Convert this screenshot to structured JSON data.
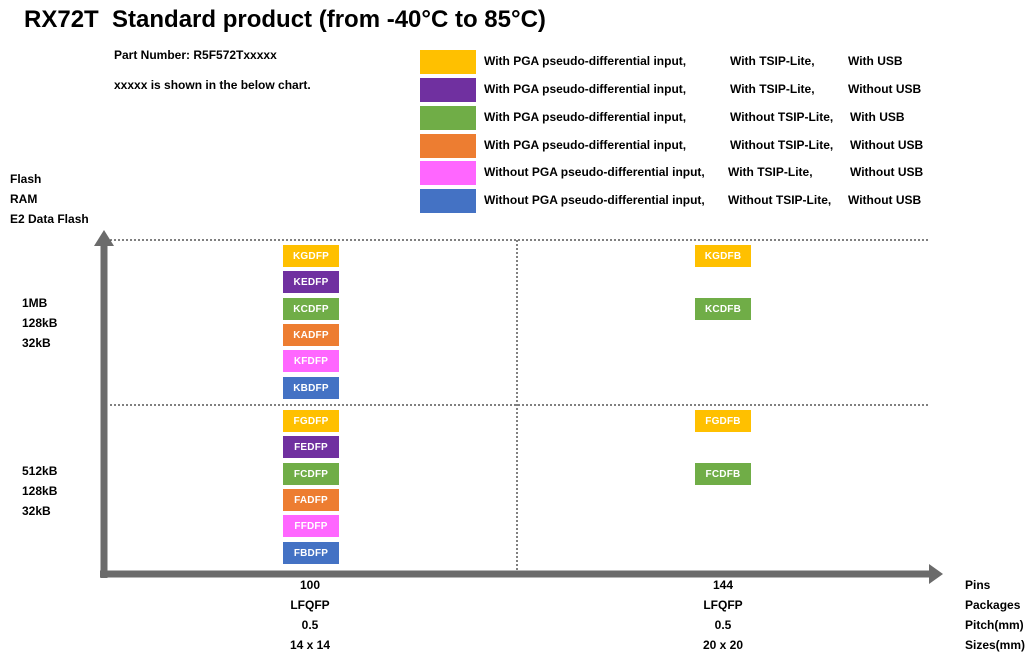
{
  "title": "RX72T  Standard product (from -40°C to 85°C)",
  "part_number": "Part Number: R5F572Txxxxx",
  "part_note": "xxxxx is shown in the below chart.",
  "colors": {
    "pga_tsip_usb": "#FFC000",
    "pga_tsip_nousb": "#7030A0",
    "pga_notsip_usb": "#70AD47",
    "pga_notsip_nousb": "#ED7D31",
    "nopga_tsip_nousb": "#FF66FF",
    "nopga_notsip_nousb": "#4472C4",
    "axis": "#6B6B6B"
  },
  "legend": [
    {
      "pga": "With PGA pseudo-differential input,",
      "tsip": "With TSIP-Lite,",
      "usb": "With USB"
    },
    {
      "pga": "With PGA pseudo-differential input,",
      "tsip": "With TSIP-Lite,",
      "usb": "Without USB"
    },
    {
      "pga": "With PGA pseudo-differential input,",
      "tsip": "Without TSIP-Lite,",
      "usb": "With USB"
    },
    {
      "pga": "With PGA pseudo-differential input,",
      "tsip": "Without TSIP-Lite,",
      "usb": "Without USB"
    },
    {
      "pga": "Without PGA pseudo-differential input,",
      "tsip": "With TSIP-Lite,",
      "usb": "Without USB"
    },
    {
      "pga": "Without PGA pseudo-differential input,",
      "tsip": "Without TSIP-Lite,",
      "usb": "Without USB"
    }
  ],
  "y_axis_labels": [
    "Flash",
    "RAM",
    "E2 Data Flash"
  ],
  "memory_tiers": [
    {
      "flash": "1MB",
      "ram": "128kB",
      "e2": "32kB"
    },
    {
      "flash": "512kB",
      "ram": "128kB",
      "e2": "32kB"
    }
  ],
  "x_axis_categories": [
    "Pins",
    "Packages",
    "Pitch(mm)",
    "Sizes(mm)"
  ],
  "packages": [
    {
      "pins": "100",
      "package": "LFQFP",
      "pitch": "0.5",
      "size": "14 x 14"
    },
    {
      "pins": "144",
      "package": "LFQFP",
      "pitch": "0.5",
      "size": "20 x 20"
    }
  ],
  "cells": {
    "p100_1mb": [
      "KGDFP",
      "KEDFP",
      "KCDFP",
      "KADFP",
      "KFDFP",
      "KBDFP"
    ],
    "p100_512kb": [
      "FGDFP",
      "FEDFP",
      "FCDFP",
      "FADFP",
      "FFDFP",
      "FBDFP"
    ],
    "p144_1mb": [
      "KGDFB",
      "KCDFB"
    ],
    "p144_512kb": [
      "FGDFB",
      "FCDFB"
    ]
  }
}
